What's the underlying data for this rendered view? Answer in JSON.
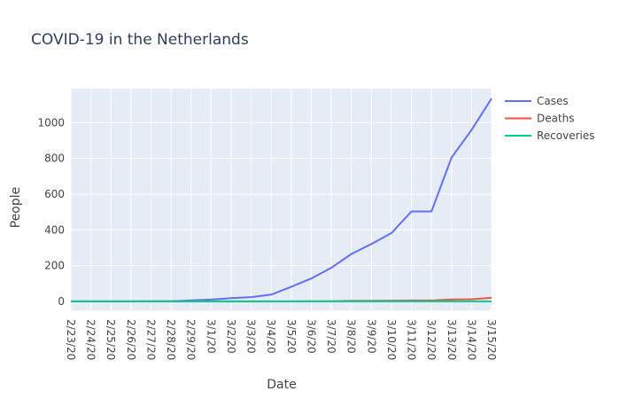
{
  "chart_data": {
    "type": "line",
    "title": "COVID-19 in the Netherlands",
    "xlabel": "Date",
    "ylabel": "People",
    "x": [
      "2/23/20",
      "2/24/20",
      "2/25/20",
      "2/26/20",
      "2/27/20",
      "2/28/20",
      "2/29/20",
      "3/1/20",
      "3/2/20",
      "3/3/20",
      "3/4/20",
      "3/5/20",
      "3/6/20",
      "3/7/20",
      "3/8/20",
      "3/9/20",
      "3/10/20",
      "3/11/20",
      "3/12/20",
      "3/13/20",
      "3/14/20",
      "3/15/20"
    ],
    "ylim": [
      -50,
      1190
    ],
    "yticks": [
      0,
      200,
      400,
      600,
      800,
      1000
    ],
    "grid": true,
    "legend_position": "top-right",
    "series": [
      {
        "name": "Cases",
        "color": "#636efa",
        "values": [
          0,
          0,
          0,
          0,
          1,
          1,
          6,
          10,
          18,
          24,
          38,
          82,
          128,
          188,
          265,
          321,
          382,
          503,
          503,
          804,
          959,
          1135
        ]
      },
      {
        "name": "Deaths",
        "color": "#ef553b",
        "values": [
          0,
          0,
          0,
          0,
          0,
          0,
          0,
          0,
          0,
          0,
          0,
          0,
          1,
          1,
          3,
          3,
          4,
          5,
          5,
          10,
          12,
          20
        ]
      },
      {
        "name": "Recoveries",
        "color": "#00cc96",
        "values": [
          0,
          0,
          0,
          0,
          0,
          0,
          0,
          0,
          0,
          0,
          0,
          0,
          0,
          0,
          0,
          0,
          0,
          0,
          0,
          0,
          0,
          0
        ]
      }
    ]
  }
}
